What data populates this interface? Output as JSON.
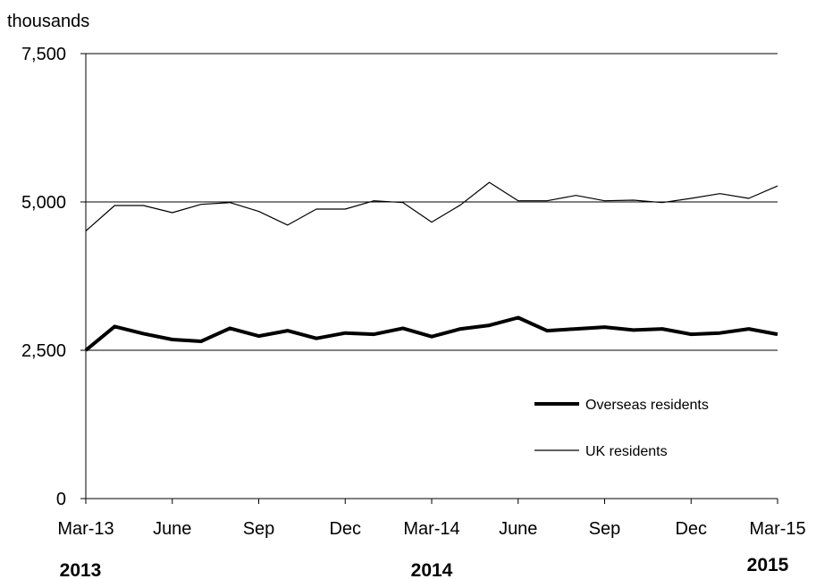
{
  "chart_data": {
    "type": "line",
    "unit_label": "thousands",
    "ylim": [
      0,
      7500
    ],
    "yticks": [
      0,
      2500,
      5000,
      7500
    ],
    "ytick_labels": [
      "0",
      "2,500",
      "5,000",
      "7,500"
    ],
    "grid": true,
    "legend_position": "bottom-right",
    "x": [
      "Mar-13",
      "Apr-13",
      "May-13",
      "Jun-13",
      "Jul-13",
      "Aug-13",
      "Sep-13",
      "Oct-13",
      "Nov-13",
      "Dec-13",
      "Jan-14",
      "Feb-14",
      "Mar-14",
      "Apr-14",
      "May-14",
      "Jun-14",
      "Jul-14",
      "Aug-14",
      "Sep-14",
      "Oct-14",
      "Nov-14",
      "Dec-14",
      "Jan-15",
      "Feb-15",
      "Mar-15"
    ],
    "xtick_labels": [
      {
        "index": 0,
        "label": "Mar-13"
      },
      {
        "index": 3,
        "label": "June"
      },
      {
        "index": 6,
        "label": "Sep"
      },
      {
        "index": 9,
        "label": "Dec"
      },
      {
        "index": 12,
        "label": "Mar-14"
      },
      {
        "index": 15,
        "label": "June"
      },
      {
        "index": 18,
        "label": "Sep"
      },
      {
        "index": 21,
        "label": "Dec"
      },
      {
        "index": 24,
        "label": "Mar-15"
      }
    ],
    "year_labels": [
      {
        "index": 0,
        "label": "2013"
      },
      {
        "index": 12,
        "label": "2014"
      },
      {
        "index": 24,
        "label": "2015"
      }
    ],
    "series": [
      {
        "name": "Overseas residents",
        "color": "#000000",
        "line_weight": "heavy",
        "values": [
          2500,
          2900,
          2780,
          2680,
          2650,
          2870,
          2740,
          2830,
          2700,
          2790,
          2770,
          2870,
          2730,
          2860,
          2920,
          3050,
          2830,
          2860,
          2890,
          2840,
          2860,
          2770,
          2790,
          2860,
          2770
        ]
      },
      {
        "name": "UK residents",
        "color": "#000000",
        "line_weight": "thin",
        "values": [
          4510,
          4940,
          4940,
          4820,
          4960,
          4990,
          4840,
          4610,
          4880,
          4880,
          5020,
          4990,
          4660,
          4950,
          5330,
          5020,
          5020,
          5110,
          5020,
          5030,
          4990,
          5060,
          5140,
          5060,
          5270
        ]
      }
    ]
  }
}
